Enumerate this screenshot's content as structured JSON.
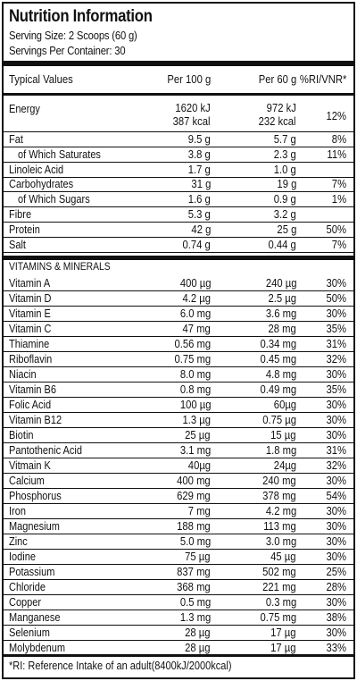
{
  "title": "Nutrition Information",
  "serving_size": "Serving Size: 2 Scoops (60 g)",
  "servings_per_container": "Servings Per Container: 30",
  "headers": {
    "typical": "Typical Values",
    "per100": "Per 100 g",
    "per60": "Per 60 g",
    "ri": "%RI/VNR*"
  },
  "energy": {
    "name": "Energy",
    "per100_kj": "1620 kJ",
    "per100_kcal": "387 kcal",
    "per60_kj": "972 kJ",
    "per60_kcal": "232 kcal",
    "ri": "12%"
  },
  "macros": [
    {
      "name": "Fat",
      "per100": "9.5 g",
      "per60": "5.7 g",
      "ri": "8%"
    },
    {
      "name": "of Which Saturates",
      "per100": "3.8 g",
      "per60": "2.3 g",
      "ri": "11%",
      "indent": true
    },
    {
      "name": "Linoleic Acid",
      "per100": "1.7 g",
      "per60": "1.0 g",
      "ri": ""
    },
    {
      "name": "Carbohydrates",
      "per100": "31 g",
      "per60": "19 g",
      "ri": "7%"
    },
    {
      "name": "of Which Sugars",
      "per100": "1.6 g",
      "per60": "0.9 g",
      "ri": "1%",
      "indent": true
    },
    {
      "name": "Fibre",
      "per100": "5.3 g",
      "per60": "3.2 g",
      "ri": ""
    },
    {
      "name": "Protein",
      "per100": "42 g",
      "per60": "25 g",
      "ri": "50%"
    },
    {
      "name": "Salt",
      "per100": "0.74 g",
      "per60": "0.44 g",
      "ri": "7%"
    }
  ],
  "vitamins_heading": "VITAMINS & MINERALS",
  "vitamins": [
    {
      "name": "Vitamin A",
      "per100": "400 µg",
      "per60": "240 µg",
      "ri": "30%"
    },
    {
      "name": "Vitamin D",
      "per100": "4.2 µg",
      "per60": "2.5 µg",
      "ri": "50%"
    },
    {
      "name": "Vitamin E",
      "per100": "6.0 mg",
      "per60": "3.6 mg",
      "ri": "30%"
    },
    {
      "name": "Vitamin C",
      "per100": "47 mg",
      "per60": "28 mg",
      "ri": "35%"
    },
    {
      "name": "Thiamine",
      "per100": "0.56 mg",
      "per60": "0.34 mg",
      "ri": "31%"
    },
    {
      "name": "Riboflavin",
      "per100": "0.75 mg",
      "per60": "0.45 mg",
      "ri": "32%"
    },
    {
      "name": "Niacin",
      "per100": "8.0 mg",
      "per60": "4.8 mg",
      "ri": "30%"
    },
    {
      "name": "Vitamin B6",
      "per100": "0.8 mg",
      "per60": "0.49 mg",
      "ri": "35%"
    },
    {
      "name": "Folic Acid",
      "per100": "100 µg",
      "per60": "60µg",
      "ri": "30%"
    },
    {
      "name": "Vitamin B12",
      "per100": "1.3 µg",
      "per60": "0.75 µg",
      "ri": "30%"
    },
    {
      "name": "Biotin",
      "per100": "25 µg",
      "per60": "15 µg",
      "ri": "30%"
    },
    {
      "name": "Pantothenic Acid",
      "per100": "3.1 mg",
      "per60": "1.8 mg",
      "ri": "31%"
    },
    {
      "name": "Vitmain K",
      "per100": "40µg",
      "per60": "24µg",
      "ri": "32%"
    },
    {
      "name": "Calcium",
      "per100": "400 mg",
      "per60": "240 mg",
      "ri": "30%"
    },
    {
      "name": "Phosphorus",
      "per100": "629 mg",
      "per60": "378 mg",
      "ri": "54%"
    },
    {
      "name": "Iron",
      "per100": "7 mg",
      "per60": "4.2 mg",
      "ri": "30%"
    },
    {
      "name": "Magnesium",
      "per100": "188 mg",
      "per60": "113 mg",
      "ri": "30%"
    },
    {
      "name": "Zinc",
      "per100": "5.0 mg",
      "per60": "3.0 mg",
      "ri": "30%"
    },
    {
      "name": "Iodine",
      "per100": "75 µg",
      "per60": "45 µg",
      "ri": "30%"
    },
    {
      "name": "Potassium",
      "per100": "837 mg",
      "per60": "502 mg",
      "ri": "25%"
    },
    {
      "name": "Chloride",
      "per100": "368 mg",
      "per60": "221 mg",
      "ri": "28%"
    },
    {
      "name": "Copper",
      "per100": "0.5 mg",
      "per60": "0.3 mg",
      "ri": "30%"
    },
    {
      "name": "Manganese",
      "per100": "1.3 mg",
      "per60": "0.75 mg",
      "ri": "38%"
    },
    {
      "name": "Selenium",
      "per100": "28 µg",
      "per60": "17 µg",
      "ri": "30%"
    },
    {
      "name": "Molybdenum",
      "per100": "28 µg",
      "per60": "17 µg",
      "ri": "33%"
    }
  ],
  "footnote": "*RI: Reference Intake of an adult(8400kJ/2000kcal)"
}
